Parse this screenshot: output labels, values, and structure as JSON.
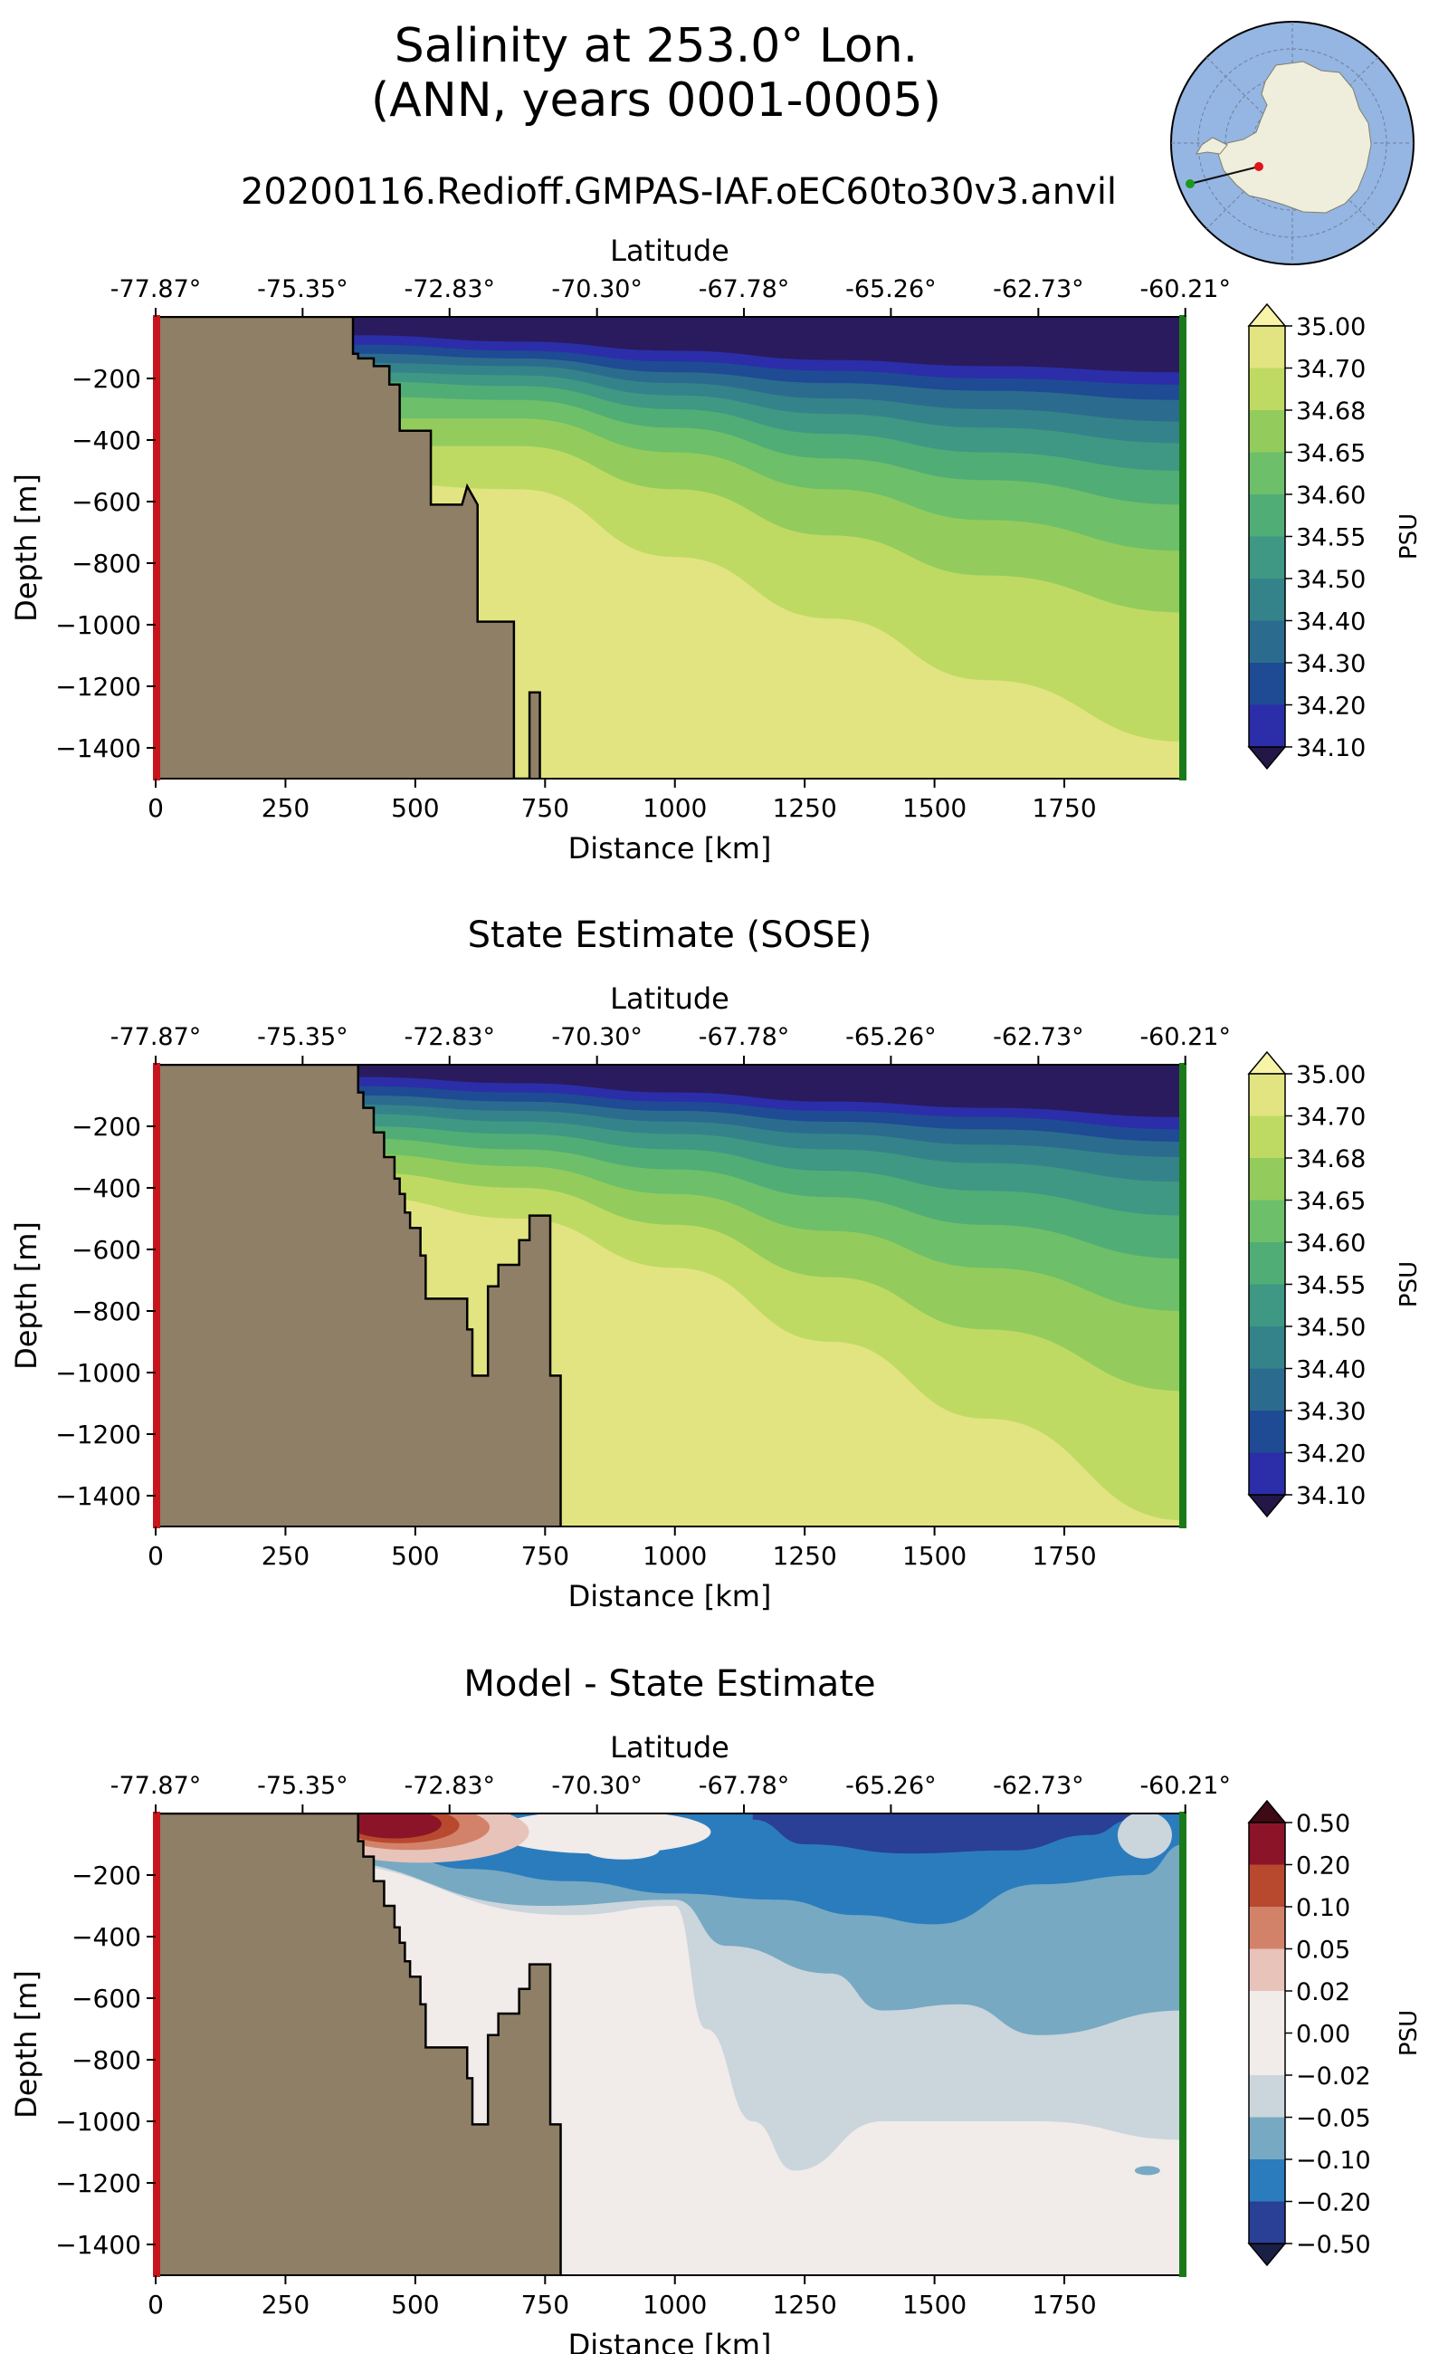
{
  "figure": {
    "title_line1": "Salinity at 253.0° Lon.",
    "title_line2": "(ANN, years 0001-0005)",
    "run_name": "20200116.Redioff.GMPAS-IAF.oEC60to30v3.anvil",
    "colors": {
      "land": "#8e7f66",
      "start_marker": "#c8141c",
      "end_marker": "#1a7a1a",
      "globe_ocean": "#95b5e2",
      "globe_land": "#efeedd",
      "transect_line": "#111111"
    }
  },
  "chart_data": [
    {
      "type": "heatmap",
      "title": "",
      "xlabel": "Distance [km]",
      "ylabel": "Depth [m]",
      "top_xlabel": "Latitude",
      "xlim": [
        0,
        1980
      ],
      "ylim": [
        -1500,
        0
      ],
      "xticks": [
        0,
        250,
        500,
        750,
        1000,
        1250,
        1500,
        1750
      ],
      "xtick_labels": [
        "0",
        "250",
        "500",
        "750",
        "1000",
        "1250",
        "1500",
        "1750"
      ],
      "yticks": [
        -200,
        -400,
        -600,
        -800,
        -1000,
        -1200,
        -1400
      ],
      "ytick_labels": [
        "−200",
        "−400",
        "−600",
        "−800",
        "−1000",
        "−1200",
        "−1400"
      ],
      "top_ticks": [
        0,
        283,
        566,
        850,
        1133,
        1416,
        1700,
        1983
      ],
      "top_tick_labels": [
        "-77.87°",
        "-75.35°",
        "-72.83°",
        "-70.30°",
        "-67.78°",
        "-65.26°",
        "-62.73°",
        "-60.21°"
      ],
      "colorbar": {
        "label": "PSU",
        "ticks": [
          "35.00",
          "34.70",
          "34.68",
          "34.65",
          "34.60",
          "34.55",
          "34.50",
          "34.40",
          "34.30",
          "34.20",
          "34.10"
        ],
        "colors": [
          "#e2e481",
          "#bfda63",
          "#93cc5c",
          "#6dbf6a",
          "#51ad76",
          "#3f9883",
          "#35838a",
          "#2b6c8e",
          "#1e4b93",
          "#2b2ea8",
          "#2a1b5e"
        ],
        "over": "#f7f4a8",
        "under": "#231748"
      },
      "contour_depths": {
        "x": [
          400,
          700,
          1000,
          1300,
          1600,
          1980
        ],
        "levels": [
          [
            -60,
            -80,
            -110,
            -140,
            -160,
            -180
          ],
          [
            -90,
            -110,
            -145,
            -175,
            -200,
            -220
          ],
          [
            -120,
            -135,
            -180,
            -215,
            -240,
            -270
          ],
          [
            -150,
            -160,
            -215,
            -265,
            -300,
            -340
          ],
          [
            -180,
            -190,
            -255,
            -315,
            -360,
            -410
          ],
          [
            -210,
            -225,
            -300,
            -380,
            -440,
            -500
          ],
          [
            -260,
            -270,
            -360,
            -460,
            -530,
            -610
          ],
          [
            -330,
            -330,
            -440,
            -560,
            -660,
            -760
          ],
          [
            -420,
            -420,
            -560,
            -710,
            -840,
            -960
          ],
          [
            -540,
            -560,
            -780,
            -980,
            -1180,
            -1380
          ]
        ]
      },
      "bathymetry": {
        "distance_km": [
          0,
          380,
          380,
          390,
          390,
          420,
          420,
          450,
          450,
          470,
          470,
          530,
          530,
          590,
          600,
          620,
          620,
          690,
          690,
          720,
          720,
          740,
          740,
          1980
        ],
        "depth_m": [
          0,
          0,
          -120,
          -120,
          -135,
          -135,
          -160,
          -160,
          -220,
          -220,
          -370,
          -370,
          -610,
          -610,
          -550,
          -610,
          -990,
          -990,
          -1500,
          -1500,
          -1220,
          -1220,
          -1500,
          -1500
        ]
      }
    },
    {
      "type": "heatmap",
      "title": "State Estimate (SOSE)",
      "xlabel": "Distance [km]",
      "ylabel": "Depth [m]",
      "top_xlabel": "Latitude",
      "xlim": [
        0,
        1980
      ],
      "ylim": [
        -1500,
        0
      ],
      "xticks": [
        0,
        250,
        500,
        750,
        1000,
        1250,
        1500,
        1750
      ],
      "xtick_labels": [
        "0",
        "250",
        "500",
        "750",
        "1000",
        "1250",
        "1500",
        "1750"
      ],
      "yticks": [
        -200,
        -400,
        -600,
        -800,
        -1000,
        -1200,
        -1400
      ],
      "ytick_labels": [
        "−200",
        "−400",
        "−600",
        "−800",
        "−1000",
        "−1200",
        "−1400"
      ],
      "top_ticks": [
        0,
        283,
        566,
        850,
        1133,
        1416,
        1700,
        1983
      ],
      "top_tick_labels": [
        "-77.87°",
        "-75.35°",
        "-72.83°",
        "-70.30°",
        "-67.78°",
        "-65.26°",
        "-62.73°",
        "-60.21°"
      ],
      "colorbar": {
        "label": "PSU",
        "ticks": [
          "35.00",
          "34.70",
          "34.68",
          "34.65",
          "34.60",
          "34.55",
          "34.50",
          "34.40",
          "34.30",
          "34.20",
          "34.10"
        ],
        "colors": [
          "#e2e481",
          "#bfda63",
          "#93cc5c",
          "#6dbf6a",
          "#51ad76",
          "#3f9883",
          "#35838a",
          "#2b6c8e",
          "#1e4b93",
          "#2b2ea8",
          "#2a1b5e"
        ],
        "over": "#f7f4a8",
        "under": "#231748"
      },
      "contour_depths": {
        "x": [
          400,
          700,
          1000,
          1300,
          1600,
          1980
        ],
        "levels": [
          [
            -40,
            -60,
            -90,
            -120,
            -140,
            -170
          ],
          [
            -70,
            -90,
            -120,
            -150,
            -170,
            -210
          ],
          [
            -100,
            -120,
            -150,
            -185,
            -210,
            -250
          ],
          [
            -130,
            -150,
            -185,
            -225,
            -260,
            -300
          ],
          [
            -160,
            -185,
            -225,
            -275,
            -320,
            -380
          ],
          [
            -200,
            -225,
            -275,
            -345,
            -410,
            -490
          ],
          [
            -240,
            -275,
            -340,
            -430,
            -520,
            -630
          ],
          [
            -290,
            -330,
            -420,
            -540,
            -660,
            -800
          ],
          [
            -350,
            -400,
            -520,
            -690,
            -860,
            -1060
          ],
          [
            -430,
            -500,
            -660,
            -900,
            -1150,
            -1480
          ]
        ]
      },
      "bathymetry": {
        "distance_km": [
          0,
          390,
          390,
          400,
          400,
          420,
          420,
          440,
          440,
          460,
          460,
          470,
          470,
          480,
          480,
          490,
          490,
          510,
          510,
          520,
          520,
          600,
          600,
          610,
          610,
          640,
          640,
          660,
          660,
          700,
          700,
          720,
          720,
          760,
          760,
          780,
          780,
          1980
        ],
        "depth_m": [
          0,
          0,
          -90,
          -90,
          -140,
          -140,
          -220,
          -220,
          -300,
          -300,
          -370,
          -370,
          -420,
          -420,
          -480,
          -480,
          -530,
          -530,
          -620,
          -620,
          -760,
          -760,
          -860,
          -860,
          -1010,
          -1010,
          -720,
          -720,
          -650,
          -650,
          -570,
          -570,
          -490,
          -490,
          -1010,
          -1010,
          -1500,
          -1500
        ]
      }
    },
    {
      "type": "heatmap",
      "title": "Model - State Estimate",
      "xlabel": "Distance [km]",
      "ylabel": "Depth [m]",
      "top_xlabel": "Latitude",
      "xlim": [
        0,
        1980
      ],
      "ylim": [
        -1500,
        0
      ],
      "xticks": [
        0,
        250,
        500,
        750,
        1000,
        1250,
        1500,
        1750
      ],
      "xtick_labels": [
        "0",
        "250",
        "500",
        "750",
        "1000",
        "1250",
        "1500",
        "1750"
      ],
      "yticks": [
        -200,
        -400,
        -600,
        -800,
        -1000,
        -1200,
        -1400
      ],
      "ytick_labels": [
        "−200",
        "−400",
        "−600",
        "−800",
        "−1000",
        "−1200",
        "−1400"
      ],
      "top_ticks": [
        0,
        283,
        566,
        850,
        1133,
        1416,
        1700,
        1983
      ],
      "top_tick_labels": [
        "-77.87°",
        "-75.35°",
        "-72.83°",
        "-70.30°",
        "-67.78°",
        "-65.26°",
        "-62.73°",
        "-60.21°"
      ],
      "colorbar": {
        "label": "PSU",
        "ticks": [
          "0.50",
          "0.20",
          "0.10",
          "0.05",
          "0.02",
          "0.00",
          "−0.02",
          "−0.05",
          "−0.10",
          "−0.20",
          "−0.50"
        ],
        "colors": [
          "#8c1428",
          "#b8492e",
          "#d3826a",
          "#e8c3b9",
          "#f1ebea",
          "#f1ebea",
          "#cbd5dc",
          "#77a9c2",
          "#2b7cbd",
          "#2a3f96"
        ],
        "over": "#3d0a16",
        "under": "#1a1f45"
      },
      "bathymetry": {
        "distance_km": [
          0,
          390,
          390,
          400,
          400,
          420,
          420,
          440,
          440,
          460,
          460,
          470,
          470,
          480,
          480,
          490,
          490,
          510,
          510,
          520,
          520,
          600,
          600,
          610,
          610,
          640,
          640,
          660,
          660,
          700,
          700,
          720,
          720,
          760,
          760,
          780,
          780,
          1980
        ],
        "depth_m": [
          0,
          0,
          -90,
          -90,
          -140,
          -140,
          -220,
          -220,
          -300,
          -300,
          -370,
          -370,
          -420,
          -420,
          -480,
          -480,
          -530,
          -530,
          -620,
          -620,
          -760,
          -760,
          -860,
          -860,
          -1010,
          -1010,
          -720,
          -720,
          -650,
          -650,
          -570,
          -570,
          -490,
          -490,
          -1010,
          -1010,
          -1500,
          -1500
        ]
      }
    }
  ]
}
